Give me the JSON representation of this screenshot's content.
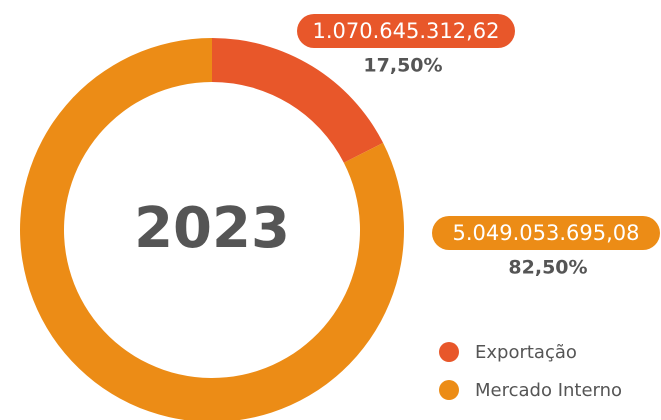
{
  "chart_data": {
    "type": "donut",
    "center_label": "2023",
    "categories": [
      "Exportação",
      "Mercado Interno"
    ],
    "values": [
      1070645312.62,
      5049053695.08
    ],
    "value_labels": [
      "1.070.645.312,62",
      "5.049.053.695,08"
    ],
    "percent_labels": [
      "17,50%",
      "82,50%"
    ],
    "colors": [
      "#e8572a",
      "#ec8c16"
    ],
    "legend": "bottom-right"
  }
}
